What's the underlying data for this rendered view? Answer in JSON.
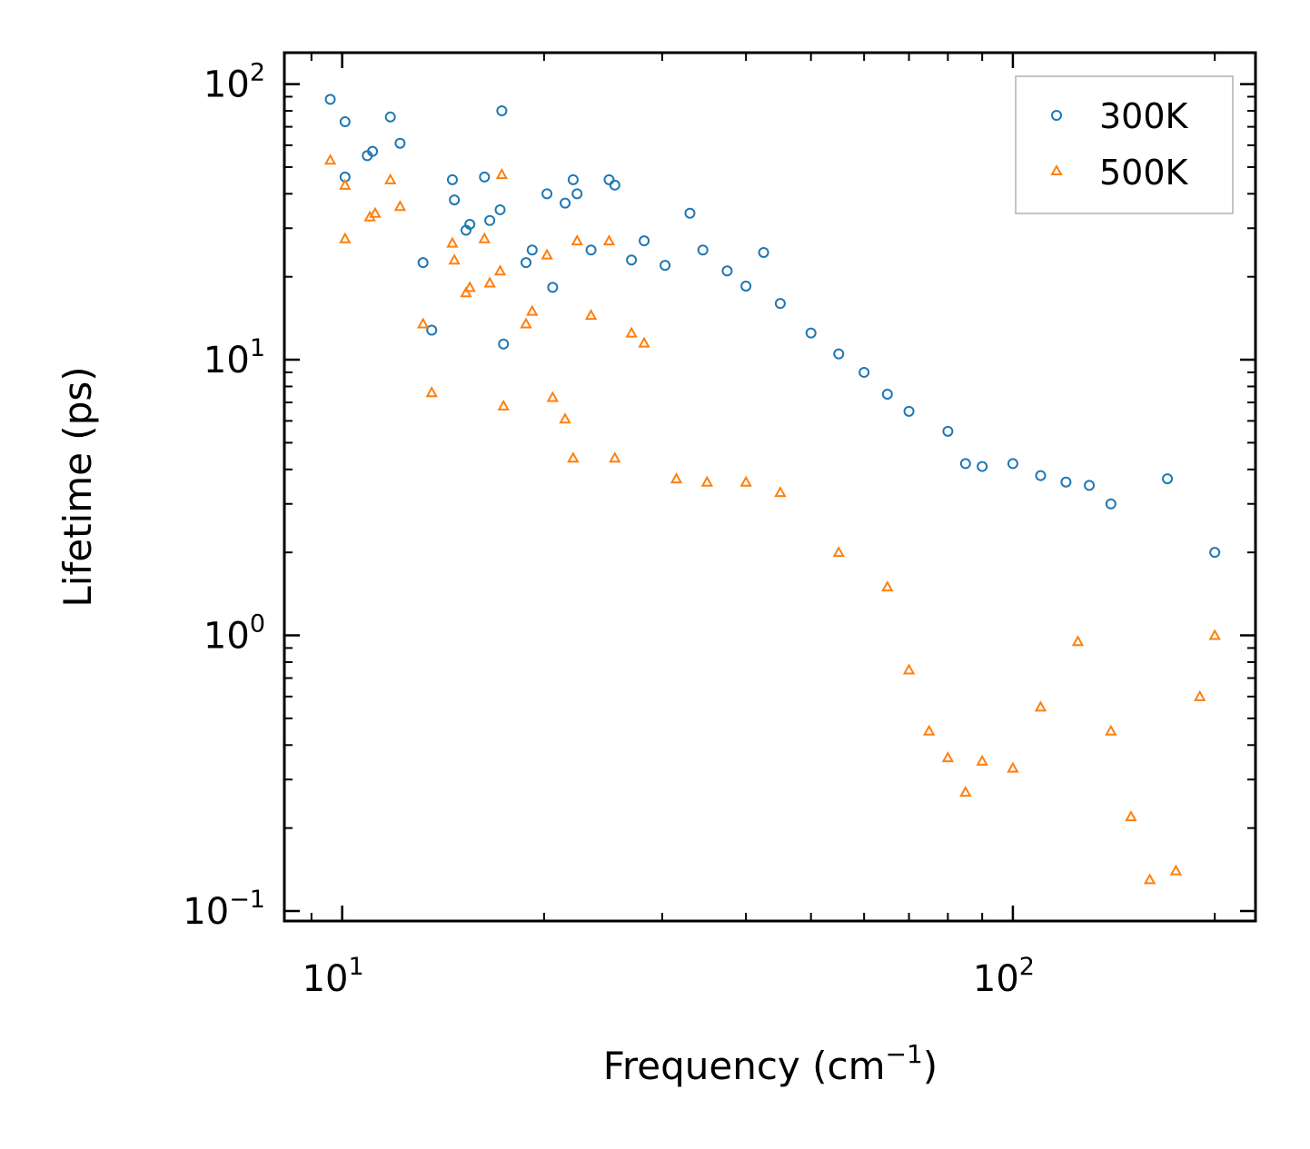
{
  "chart_data": {
    "type": "scatter",
    "title": "",
    "xlabel": "Frequency (cm",
    "xlabel_sup": "−1",
    "xlabel_end": ")",
    "ylabel": "Lifetime (ps)",
    "xscale": "log",
    "yscale": "log",
    "xlim": [
      8.2,
      230
    ],
    "ylim": [
      0.092,
      130
    ],
    "x_ticks": [
      {
        "value": 10,
        "base": "10",
        "exp": "1"
      },
      {
        "value": 100,
        "base": "10",
        "exp": "2"
      }
    ],
    "y_ticks": [
      {
        "value": 0.1,
        "base": "10",
        "exp": "−1"
      },
      {
        "value": 1,
        "base": "10",
        "exp": "0"
      },
      {
        "value": 10,
        "base": "10",
        "exp": "1"
      },
      {
        "value": 100,
        "base": "10",
        "exp": "2"
      }
    ],
    "legend_position": "top-right",
    "series": [
      {
        "name": "300K",
        "marker": "circle",
        "color": "#1f77b4",
        "points": [
          [
            9.6,
            88
          ],
          [
            10.1,
            73
          ],
          [
            10.1,
            46
          ],
          [
            10.9,
            55
          ],
          [
            11.1,
            57
          ],
          [
            11.8,
            76
          ],
          [
            12.2,
            61
          ],
          [
            13.2,
            22.5
          ],
          [
            13.6,
            12.8
          ],
          [
            14.6,
            45
          ],
          [
            14.7,
            38
          ],
          [
            15.3,
            29.5
          ],
          [
            15.5,
            31
          ],
          [
            16.3,
            46
          ],
          [
            16.6,
            32
          ],
          [
            17.2,
            35
          ],
          [
            17.3,
            80
          ],
          [
            17.4,
            11.4
          ],
          [
            18.8,
            22.5
          ],
          [
            19.2,
            25
          ],
          [
            20.2,
            40
          ],
          [
            20.6,
            18.3
          ],
          [
            21.5,
            37
          ],
          [
            22.1,
            45
          ],
          [
            22.4,
            40
          ],
          [
            23.5,
            25
          ],
          [
            25.0,
            45
          ],
          [
            25.5,
            43
          ],
          [
            27.0,
            23
          ],
          [
            28.2,
            27
          ],
          [
            30.3,
            22
          ],
          [
            33.0,
            34
          ],
          [
            34.5,
            25
          ],
          [
            37.5,
            21
          ],
          [
            42.5,
            24.5
          ],
          [
            40.0,
            18.5
          ],
          [
            45.0,
            16.0
          ],
          [
            50.0,
            12.5
          ],
          [
            55.0,
            10.5
          ],
          [
            60.0,
            9.0
          ],
          [
            65.0,
            7.5
          ],
          [
            70.0,
            6.5
          ],
          [
            80.0,
            5.5
          ],
          [
            85.0,
            4.2
          ],
          [
            90.0,
            4.1
          ],
          [
            100.0,
            4.2
          ],
          [
            110.0,
            3.8
          ],
          [
            120.0,
            3.6
          ],
          [
            130.0,
            3.5
          ],
          [
            140.0,
            3.0
          ],
          [
            170.0,
            3.7
          ],
          [
            200.0,
            2.0
          ]
        ]
      },
      {
        "name": "500K",
        "marker": "triangle",
        "color": "#ff7f0e",
        "points": [
          [
            9.6,
            53
          ],
          [
            10.1,
            43
          ],
          [
            10.1,
            27.5
          ],
          [
            11.0,
            33
          ],
          [
            11.2,
            34
          ],
          [
            11.8,
            45
          ],
          [
            12.2,
            36
          ],
          [
            13.2,
            13.5
          ],
          [
            13.6,
            7.6
          ],
          [
            14.6,
            26.5
          ],
          [
            14.7,
            23
          ],
          [
            15.3,
            17.5
          ],
          [
            15.5,
            18.3
          ],
          [
            16.3,
            27.5
          ],
          [
            16.6,
            19
          ],
          [
            17.2,
            21
          ],
          [
            17.3,
            47
          ],
          [
            17.4,
            6.8
          ],
          [
            18.8,
            13.5
          ],
          [
            19.2,
            15
          ],
          [
            20.2,
            24
          ],
          [
            20.6,
            7.3
          ],
          [
            21.5,
            6.1
          ],
          [
            22.1,
            4.4
          ],
          [
            22.4,
            27
          ],
          [
            23.5,
            14.5
          ],
          [
            25.0,
            27
          ],
          [
            25.5,
            4.4
          ],
          [
            27.0,
            12.5
          ],
          [
            28.2,
            11.5
          ],
          [
            31.5,
            3.7
          ],
          [
            35.0,
            3.6
          ],
          [
            40.0,
            3.6
          ],
          [
            45.0,
            3.3
          ],
          [
            55.0,
            2.0
          ],
          [
            65.0,
            1.5
          ],
          [
            70.0,
            0.75
          ],
          [
            75.0,
            0.45
          ],
          [
            80.0,
            0.36
          ],
          [
            85.0,
            0.27
          ],
          [
            90.0,
            0.35
          ],
          [
            100.0,
            0.33
          ],
          [
            110.0,
            0.55
          ],
          [
            125.0,
            0.95
          ],
          [
            140.0,
            0.45
          ],
          [
            150.0,
            0.22
          ],
          [
            160.0,
            0.13
          ],
          [
            175.0,
            0.14
          ],
          [
            190.0,
            0.6
          ],
          [
            200.0,
            1.0
          ]
        ]
      }
    ]
  }
}
